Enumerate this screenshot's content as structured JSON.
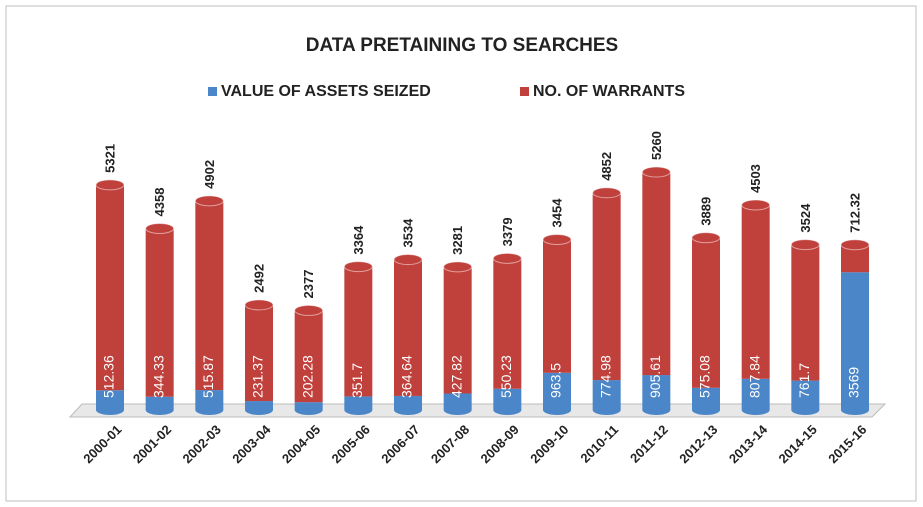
{
  "chart_data": {
    "type": "bar",
    "stacked": true,
    "title": "DATA PRETAINING TO SEARCHES",
    "categories": [
      "2000-01",
      "2001-02",
      "2002-03",
      "2003-04",
      "2004-05",
      "2005-06",
      "2006-07",
      "2007-08",
      "2008-09",
      "2009-10",
      "2010-11",
      "2011-12",
      "2012-13",
      "2013-14",
      "2014-15",
      "2015-16"
    ],
    "series": [
      {
        "name": "VALUE OF ASSETS SEIZED",
        "color": "#4a86c8",
        "values": [
          512.36,
          344.33,
          515.87,
          231.37,
          202.28,
          351.7,
          364.64,
          427.82,
          550.23,
          963.5,
          774.98,
          905.61,
          575.08,
          807.84,
          761.7,
          3569
        ]
      },
      {
        "name": "NO. OF WARRANTS",
        "color": "#c0403c",
        "values": [
          5321,
          4358,
          4902,
          2492,
          2377,
          3364,
          3534,
          3281,
          3379,
          3454,
          4852,
          5260,
          3889,
          4503,
          3524,
          712.32
        ]
      }
    ]
  }
}
